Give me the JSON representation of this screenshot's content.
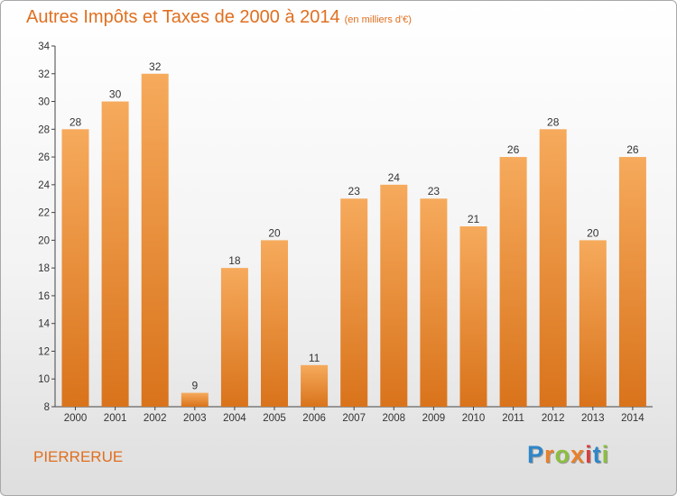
{
  "header": {
    "title": "Autres Impôts et Taxes de 2000 à 2014",
    "subtitle": "(en milliers d'€)"
  },
  "footer": {
    "town": "PIERRERUE",
    "logo_letters": [
      {
        "ch": "P",
        "color": "#2f86c9"
      },
      {
        "ch": "r",
        "color": "#e9802a"
      },
      {
        "ch": "o",
        "color": "#8cbf3f"
      },
      {
        "ch": "x",
        "color": "#e9802a"
      },
      {
        "ch": "i",
        "color": "#d64040"
      },
      {
        "ch": "t",
        "color": "#2f86c9"
      },
      {
        "ch": "i",
        "color": "#8cbf3f"
      }
    ]
  },
  "colors": {
    "bar_light": "#f6aa5c",
    "bar_dark": "#d9731b",
    "accent": "#e06f1f"
  },
  "chart_data": {
    "type": "bar",
    "title": "Autres Impôts et Taxes de 2000 à 2014",
    "subtitle": "(en milliers d'€)",
    "categories": [
      "2000",
      "2001",
      "2002",
      "2003",
      "2004",
      "2005",
      "2006",
      "2007",
      "2008",
      "2009",
      "2010",
      "2011",
      "2012",
      "2013",
      "2014"
    ],
    "values": [
      28,
      30,
      32,
      9,
      18,
      20,
      11,
      23,
      24,
      23,
      21,
      26,
      28,
      20,
      26
    ],
    "ylim": [
      8,
      34
    ],
    "yticks": [
      8,
      10,
      12,
      14,
      16,
      18,
      20,
      22,
      24,
      26,
      28,
      30,
      32,
      34
    ],
    "xlabel": "",
    "ylabel": "",
    "grid": false,
    "legend": "none"
  }
}
